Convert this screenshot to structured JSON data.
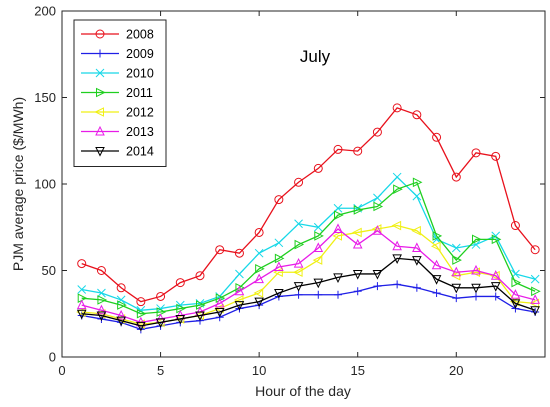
{
  "chart_data": {
    "type": "line",
    "title": "July",
    "xlabel": "Hour of the day",
    "ylabel": "PJM average price ($/MWh)",
    "xlim": [
      0,
      24.5
    ],
    "ylim": [
      0,
      200
    ],
    "x_ticks": [
      0,
      5,
      10,
      15,
      20
    ],
    "y_ticks": [
      0,
      50,
      100,
      150,
      200
    ],
    "grid": false,
    "legend_position": "top-left",
    "x": [
      1,
      2,
      3,
      4,
      5,
      6,
      7,
      8,
      9,
      10,
      11,
      12,
      13,
      14,
      15,
      16,
      17,
      18,
      19,
      20,
      21,
      22,
      23,
      24
    ],
    "series": [
      {
        "name": "2008",
        "color": "#e8111c",
        "marker": "circle",
        "values": [
          54,
          50,
          40,
          32,
          35,
          43,
          47,
          62,
          60,
          72,
          91,
          101,
          109,
          120,
          119,
          130,
          144,
          140,
          127,
          104,
          118,
          116,
          76,
          62
        ]
      },
      {
        "name": "2009",
        "color": "#1f1fe6",
        "marker": "plus",
        "values": [
          24,
          22,
          20,
          16,
          18,
          20,
          21,
          23,
          28,
          30,
          35,
          36,
          36,
          36,
          38,
          41,
          42,
          40,
          37,
          34,
          35,
          35,
          28,
          26
        ]
      },
      {
        "name": "2010",
        "color": "#17d8e8",
        "marker": "x",
        "values": [
          39,
          37,
          33,
          27,
          28,
          30,
          31,
          35,
          48,
          60,
          66,
          77,
          75,
          86,
          86,
          92,
          104,
          93,
          68,
          63,
          65,
          70,
          48,
          45
        ]
      },
      {
        "name": "2011",
        "color": "#1fcf1f",
        "marker": "triangle-right",
        "values": [
          34,
          33,
          30,
          25,
          26,
          28,
          30,
          34,
          40,
          51,
          57,
          65,
          70,
          82,
          85,
          87,
          97,
          101,
          70,
          56,
          68,
          68,
          43,
          38
        ]
      },
      {
        "name": "2012",
        "color": "#f0f014",
        "marker": "triangle-left",
        "values": [
          26,
          25,
          22,
          19,
          20,
          22,
          24,
          28,
          33,
          37,
          49,
          49,
          56,
          70,
          72,
          74,
          76,
          73,
          64,
          47,
          49,
          47,
          32,
          31
        ]
      },
      {
        "name": "2013",
        "color": "#e81ce8",
        "marker": "triangle-up",
        "values": [
          30,
          27,
          24,
          20,
          22,
          24,
          26,
          31,
          38,
          45,
          52,
          54,
          63,
          74,
          65,
          73,
          64,
          63,
          53,
          49,
          50,
          47,
          36,
          33
        ]
      },
      {
        "name": "2014",
        "color": "#000000",
        "marker": "triangle-down",
        "values": [
          25,
          24,
          21,
          18,
          20,
          22,
          24,
          26,
          30,
          32,
          37,
          41,
          43,
          46,
          48,
          48,
          57,
          56,
          45,
          40,
          40,
          41,
          31,
          27
        ]
      }
    ]
  }
}
